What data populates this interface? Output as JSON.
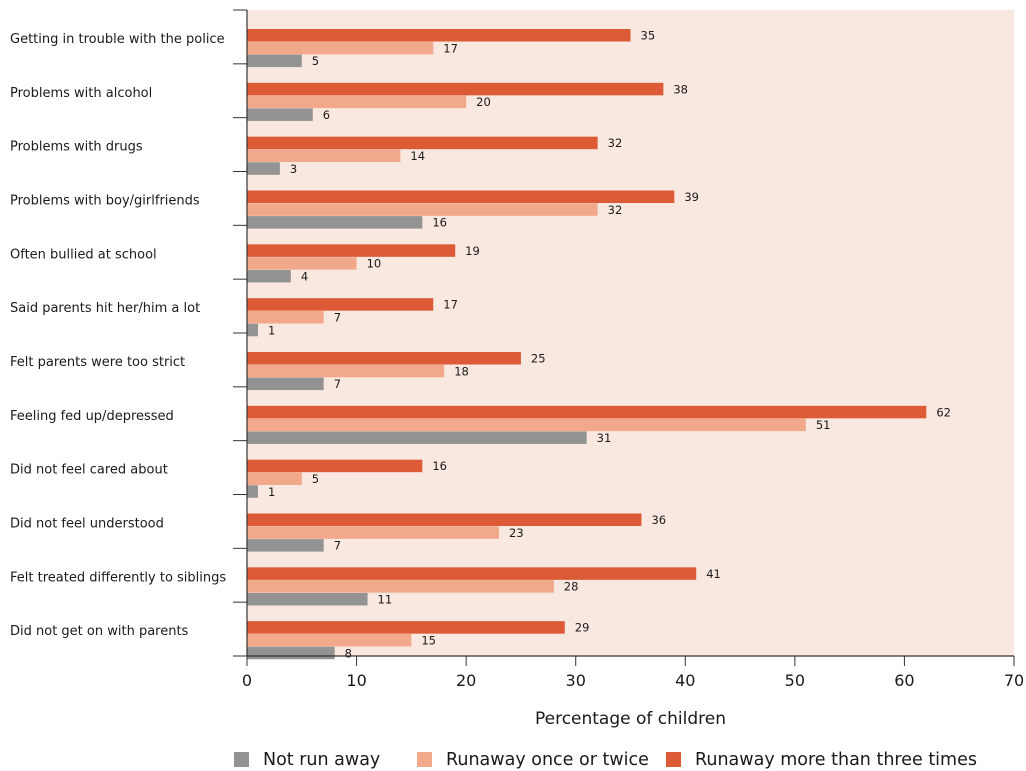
{
  "chart_data": {
    "type": "bar",
    "orientation": "horizontal",
    "xlabel": "Percentage of children",
    "ylabel": "",
    "xlim": [
      0,
      70
    ],
    "xticks": [
      0,
      10,
      20,
      30,
      40,
      50,
      60,
      70
    ],
    "categories": [
      "Getting in trouble with the police",
      "Problems with alcohol",
      "Problems with drugs",
      "Problems with boy/girlfriends",
      "Often bullied at school",
      "Said parents hit her/him a lot",
      "Felt parents were too strict",
      "Feeling fed up/depressed",
      "Did not feel cared about",
      "Did not feel understood",
      "Felt treated differently to siblings",
      "Did not get on with parents"
    ],
    "series": [
      {
        "name": "Runaway more than three times",
        "color": "#dc5a36",
        "values": [
          35,
          38,
          32,
          39,
          19,
          17,
          25,
          62,
          16,
          36,
          41,
          29
        ]
      },
      {
        "name": "Runaway once or twice",
        "color": "#f2a88a",
        "values": [
          17,
          20,
          14,
          32,
          10,
          7,
          18,
          51,
          5,
          23,
          28,
          15
        ]
      },
      {
        "name": "Not run away",
        "color": "#939393",
        "values": [
          5,
          6,
          3,
          16,
          4,
          1,
          7,
          31,
          1,
          7,
          11,
          8
        ]
      }
    ],
    "legend": {
      "position": "bottom",
      "order": [
        "Not run away",
        "Runaway once or twice",
        "Runaway more than three times"
      ]
    },
    "plot_background": "#f9e8df",
    "grid": false
  }
}
